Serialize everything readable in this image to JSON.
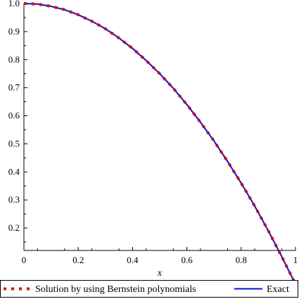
{
  "chart_data": {
    "type": "line",
    "title": "",
    "xlabel": "x",
    "ylabel": "",
    "xlim": [
      0,
      1
    ],
    "ylim": [
      0.12,
      1.0
    ],
    "x_ticks": [
      0,
      0.2,
      0.4,
      0.6,
      0.8,
      1
    ],
    "x_tick_labels": [
      "0",
      "0.2",
      "0.4",
      "0.6",
      "0.8",
      "1"
    ],
    "y_ticks": [
      0.2,
      0.3,
      0.4,
      0.5,
      0.6,
      0.7,
      0.8,
      0.9,
      1.0
    ],
    "y_tick_labels": [
      "0.2",
      "0.3",
      "0.4",
      "0.5",
      "0.6",
      "0.7",
      "0.8",
      "0.9",
      "1.0"
    ],
    "grid": false,
    "legend_position": "bottom",
    "x": [
      0,
      0.05,
      0.1,
      0.15,
      0.2,
      0.25,
      0.3,
      0.35,
      0.4,
      0.45,
      0.5,
      0.55,
      0.6,
      0.65,
      0.7,
      0.75,
      0.8,
      0.85,
      0.9,
      0.95,
      1.0
    ],
    "series": [
      {
        "name": "Solution by using Bernstein polynomials",
        "color": "#cc1111",
        "style": "dotted",
        "values": [
          1.0,
          0.998,
          0.99,
          0.978,
          0.96,
          0.937,
          0.91,
          0.877,
          0.84,
          0.797,
          0.75,
          0.698,
          0.64,
          0.577,
          0.51,
          0.437,
          0.36,
          0.278,
          0.19,
          0.097,
          0.0
        ]
      },
      {
        "name": "Exact",
        "color": "#0a0adf",
        "style": "solid",
        "values": [
          1.0,
          0.998,
          0.99,
          0.978,
          0.96,
          0.937,
          0.91,
          0.877,
          0.84,
          0.797,
          0.75,
          0.698,
          0.64,
          0.577,
          0.51,
          0.437,
          0.36,
          0.278,
          0.19,
          0.097,
          0.0
        ]
      }
    ]
  }
}
